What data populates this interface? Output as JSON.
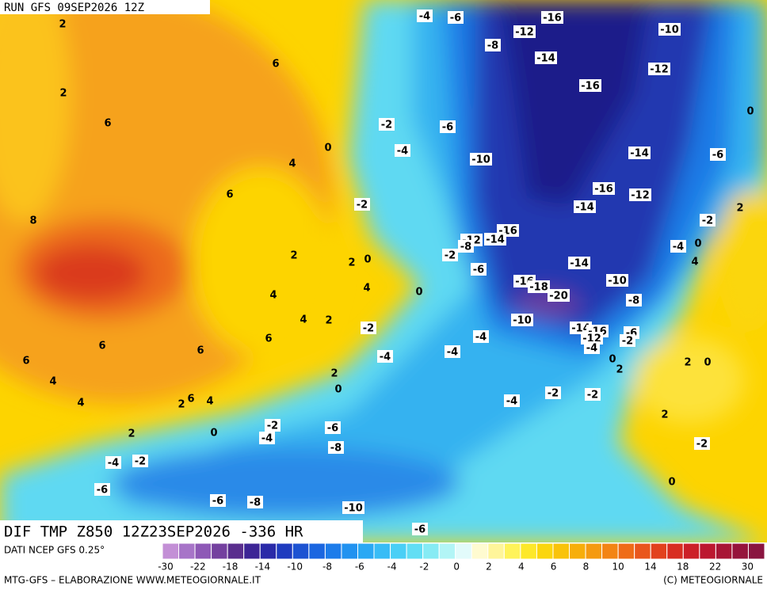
{
  "header": {
    "run_label": "RUN GFS 09SEP2026 12Z"
  },
  "footer": {
    "title": "DIF TMP Z850 12Z23SEP2026 -336 HR",
    "source": "DATI NCEP GFS 0.25°",
    "credit_left": "MTG-GFS – ELABORAZIONE WWW.METEOGIORNALE.IT",
    "credit_right": "(C) METEOGIORNALE"
  },
  "colorbar": {
    "colors": [
      "#c38fd6",
      "#a774c8",
      "#8e58b6",
      "#74409f",
      "#5a2e8e",
      "#3d2596",
      "#2a2aa8",
      "#1f3bbf",
      "#1c52d2",
      "#1b66e0",
      "#1d7cea",
      "#2192f0",
      "#2aa8f4",
      "#38bcf6",
      "#4acff6",
      "#62def4",
      "#86ebf4",
      "#b2f5f6",
      "#e2fbfb",
      "#fffbd0",
      "#fff59a",
      "#fff35a",
      "#fde82a",
      "#fbd60e",
      "#f9c30a",
      "#f7ae0a",
      "#f59a10",
      "#f38414",
      "#ef6c18",
      "#e9561c",
      "#e2421e",
      "#d82e22",
      "#cc2028",
      "#bc1830",
      "#a81636",
      "#96143c",
      "#8a1440"
    ],
    "labels": [
      "-30",
      "-22",
      "-18",
      "-14",
      "-10",
      "-8",
      "-6",
      "-4",
      "-2",
      "0",
      "2",
      "4",
      "6",
      "8",
      "10",
      "14",
      "18",
      "22",
      "30"
    ]
  },
  "contour_labels": [
    "2",
    "-4",
    "-6",
    "-16",
    "-12",
    "-10",
    "-8",
    "6",
    "-14",
    "-12",
    "2",
    "-16",
    "0",
    "6",
    "-2",
    "-6",
    "0",
    "-4",
    "-10",
    "-14",
    "-6",
    "4",
    "6",
    "-16",
    "-12",
    "-2",
    "-14",
    "2",
    "8",
    "-2",
    "-16",
    "-12",
    "-14",
    "-8",
    "0",
    "-4",
    "2",
    "-2",
    "0",
    "2",
    "4",
    "-14",
    "-6",
    "-16",
    "-18",
    "-10",
    "4",
    "0",
    "4",
    "-20",
    "-8",
    "4",
    "2",
    "-10",
    "-2",
    "-14",
    "-16",
    "-6",
    "-12",
    "-2",
    "6",
    "-4",
    "6",
    "6",
    "-4",
    "-4",
    "-4",
    "0",
    "2",
    "0",
    "6",
    "2",
    "2",
    "4",
    "0",
    "-2",
    "-2",
    "6",
    "4",
    "-4",
    "2",
    "4",
    "2",
    "-2",
    "-6",
    "0",
    "2",
    "-4",
    "-2",
    "-8",
    "-4",
    "-2",
    "-6",
    "0",
    "-6",
    "-8",
    "-10",
    "-6"
  ]
}
